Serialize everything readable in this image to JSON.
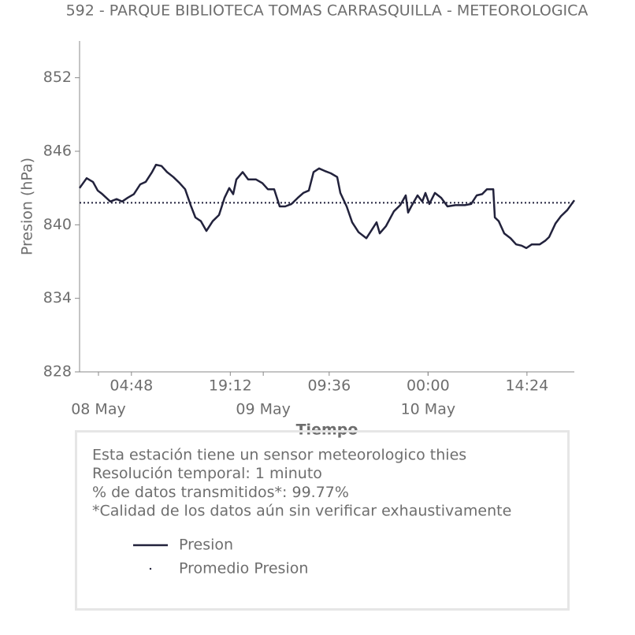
{
  "chart_data": {
    "type": "line",
    "title": "592 - PARQUE BIBLIOTECA TOMAS CARRASQUILLA - METEOROLOGICA",
    "x_label": "Tiempo",
    "y_label": "Presion (hPa)",
    "x": [
      -2.75,
      -1.72,
      -0.8,
      -0.11,
      0.57,
      1.72,
      2.64,
      3.44,
      4.25,
      5.16,
      6.08,
      6.88,
      7.8,
      8.38,
      9.18,
      9.98,
      10.9,
      11.82,
      12.62,
      13.43,
      14.11,
      14.92,
      15.72,
      16.64,
      17.56,
      18.36,
      19.05,
      19.62,
      20.08,
      21.0,
      21.8,
      22.95,
      23.87,
      24.67,
      25.59,
      26.39,
      27.19,
      28.11,
      29.03,
      29.83,
      30.64,
      31.33,
      32.13,
      32.93,
      33.85,
      34.77,
      35.23,
      36.14,
      36.95,
      37.87,
      39.01,
      39.59,
      40.5,
      40.96,
      41.88,
      43.03,
      43.95,
      44.75,
      45.09,
      45.55,
      46.47,
      47.16,
      47.62,
      48.19,
      48.99,
      49.91,
      50.83,
      51.98,
      53.36,
      54.27,
      55.08,
      55.88,
      56.57,
      57.49,
      57.72,
      58.29,
      59.09,
      60.01,
      60.82,
      61.62,
      62.31,
      63.11,
      64.26,
      65.06,
      65.63,
      66.55,
      67.35,
      68.27,
      69.3
    ],
    "series": [
      {
        "name": "Presion",
        "color": "#22223c",
        "values": [
          843.0,
          843.8,
          843.5,
          842.8,
          842.5,
          841.9,
          842.1,
          841.9,
          842.2,
          842.5,
          843.3,
          843.5,
          844.3,
          844.9,
          844.8,
          844.3,
          843.9,
          843.4,
          842.9,
          841.6,
          840.6,
          840.3,
          839.5,
          840.3,
          840.8,
          842.2,
          843.0,
          842.5,
          843.7,
          844.3,
          843.7,
          843.7,
          843.4,
          842.9,
          842.9,
          841.5,
          841.5,
          841.7,
          842.2,
          842.6,
          842.8,
          844.3,
          844.6,
          844.4,
          844.2,
          843.9,
          842.6,
          841.5,
          840.2,
          839.4,
          838.9,
          839.4,
          840.2,
          839.3,
          839.9,
          841.1,
          841.6,
          842.4,
          841.0,
          841.5,
          842.4,
          841.9,
          842.6,
          841.7,
          842.6,
          842.2,
          841.5,
          841.6,
          841.6,
          841.7,
          842.4,
          842.5,
          842.9,
          842.9,
          840.6,
          840.3,
          839.3,
          838.9,
          838.4,
          838.3,
          838.1,
          838.4,
          838.4,
          838.7,
          839.0,
          840.1,
          840.7,
          841.2,
          842.0
        ]
      }
    ],
    "average": {
      "name": "Promedio Presion",
      "value": 841.8,
      "color": "#22223c"
    },
    "xlim": [
      -2.75,
      69.3
    ],
    "xticks": [
      {
        "value": 4.8,
        "label": "04:48"
      },
      {
        "value": 19.2,
        "label": "19:12"
      },
      {
        "value": 33.6,
        "label": "09:36"
      },
      {
        "value": 48,
        "label": "00:00"
      },
      {
        "value": 62.4,
        "label": "14:24"
      }
    ],
    "xticks_minor": [
      {
        "value": 0,
        "label": "08 May"
      },
      {
        "value": 24,
        "label": "09 May"
      },
      {
        "value": 48,
        "label": "10 May"
      }
    ],
    "ylim": [
      828,
      855
    ],
    "yticks": [
      828,
      834,
      840,
      846,
      852
    ],
    "grid": false
  },
  "info_box": {
    "lines": [
      "Esta estación tiene un sensor meteorologico thies",
      "Resolución temporal: 1 minuto",
      "% de datos transmitidos*: 99.77%",
      "*Calidad de los datos aún sin verificar exhaustivamente"
    ]
  }
}
